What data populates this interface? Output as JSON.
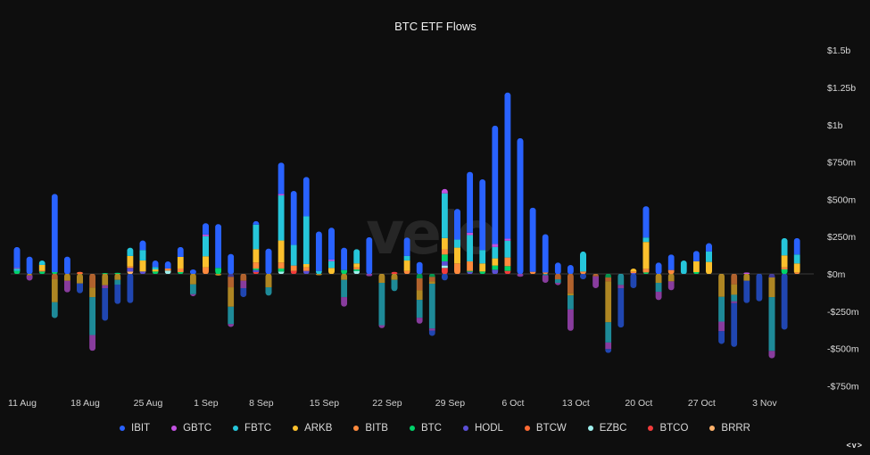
{
  "chart_data": {
    "type": "bar",
    "stacked": true,
    "title": "BTC ETF Flows",
    "watermark": "velo",
    "xlabel": "",
    "ylabel": "",
    "ylim": [
      -750,
      1500
    ],
    "y_unit": "USD millions",
    "y_ticks": [
      {
        "value": 1500,
        "label": "$1.5b"
      },
      {
        "value": 1250,
        "label": "$1.25b"
      },
      {
        "value": 1000,
        "label": "$1b"
      },
      {
        "value": 750,
        "label": "$750m"
      },
      {
        "value": 500,
        "label": "$500m"
      },
      {
        "value": 250,
        "label": "$250m"
      },
      {
        "value": 0,
        "label": "$0m"
      },
      {
        "value": -250,
        "label": "-$250m"
      },
      {
        "value": -500,
        "label": "-$500m"
      },
      {
        "value": -750,
        "label": "-$750m"
      }
    ],
    "x_ticks": [
      "11 Aug",
      "18 Aug",
      "25 Aug",
      "1 Sep",
      "8 Sep",
      "15 Sep",
      "22 Sep",
      "29 Sep",
      "6 Oct",
      "13 Oct",
      "20 Oct",
      "27 Oct",
      "3 Nov"
    ],
    "grid": false,
    "legend_position": "bottom",
    "categories": [
      "11 Aug",
      "12 Aug",
      "13 Aug",
      "14 Aug",
      "15 Aug",
      "18 Aug",
      "19 Aug",
      "20 Aug",
      "21 Aug",
      "22 Aug",
      "25 Aug",
      "26 Aug",
      "27 Aug",
      "28 Aug",
      "29 Aug",
      "2 Sep",
      "3 Sep",
      "4 Sep",
      "5 Sep",
      "8 Sep",
      "9 Sep",
      "10 Sep",
      "11 Sep",
      "12 Sep",
      "15 Sep",
      "16 Sep",
      "17 Sep",
      "18 Sep",
      "19 Sep",
      "22 Sep",
      "23 Sep",
      "24 Sep",
      "25 Sep",
      "26 Sep",
      "29 Sep",
      "30 Sep",
      "1 Oct",
      "2 Oct",
      "3 Oct",
      "6 Oct",
      "7 Oct",
      "8 Oct",
      "9 Oct",
      "10 Oct",
      "13 Oct",
      "14 Oct",
      "15 Oct",
      "16 Oct",
      "17 Oct",
      "20 Oct",
      "21 Oct",
      "22 Oct",
      "23 Oct",
      "24 Oct",
      "27 Oct",
      "28 Oct",
      "29 Oct",
      "30 Oct",
      "31 Oct",
      "3 Nov",
      "4 Nov",
      "5 Nov",
      "6 Nov"
    ],
    "series": [
      {
        "name": "IBIT",
        "color": "#2962ff",
        "values": [
          140,
          116,
          0,
          524,
          116,
          -66,
          0,
          -218,
          -130,
          -196,
          64,
          44,
          48,
          66,
          30,
          76,
          294,
          134,
          -60,
          24,
          170,
          210,
          362,
          264,
          264,
          214,
          150,
          0,
          246,
          0,
          0,
          124,
          80,
          -36,
          -44,
          206,
          408,
          474,
          794,
          980,
          910,
          430,
          256,
          76,
          60,
          -36,
          0,
          -26,
          -264,
          -96,
          210,
          76,
          104,
          0,
          70,
          56,
          -86,
          -294,
          -150,
          -184,
          0,
          -374,
          110
        ]
      },
      {
        "name": "GBTC",
        "color": "#c252e1",
        "values": [
          5,
          -35,
          0,
          0,
          -78,
          0,
          -106,
          -20,
          0,
          0,
          0,
          0,
          0,
          0,
          -14,
          12,
          0,
          -20,
          -50,
          0,
          0,
          10,
          0,
          0,
          0,
          10,
          -64,
          0,
          -16,
          -20,
          0,
          0,
          -40,
          -14,
          30,
          0,
          16,
          0,
          20,
          14,
          -20,
          0,
          -50,
          -16,
          -144,
          0,
          -80,
          -44,
          -22,
          0,
          0,
          -56,
          -60,
          0,
          0,
          0,
          -64,
          -12,
          10,
          0,
          -50,
          0,
          0
        ]
      },
      {
        "name": "FBTC",
        "color": "#26c6da",
        "values": [
          15,
          0,
          30,
          -106,
          0,
          0,
          -254,
          0,
          -32,
          56,
          70,
          16,
          0,
          0,
          -66,
          134,
          0,
          -116,
          0,
          164,
          -56,
          302,
          138,
          320,
          20,
          46,
          -116,
          96,
          0,
          -284,
          -76,
          30,
          -120,
          -300,
          300,
          54,
          176,
          90,
          76,
          112,
          0,
          0,
          -10,
          -24,
          -94,
          134,
          0,
          -136,
          -74,
          0,
          30,
          -60,
          0,
          90,
          0,
          70,
          -166,
          -44,
          0,
          0,
          -360,
          116,
          60
        ]
      },
      {
        "name": "ARKB",
        "color": "#fbc02d",
        "values": [
          0,
          -10,
          36,
          -154,
          -46,
          -64,
          -64,
          -76,
          -40,
          70,
          74,
          14,
          0,
          78,
          -70,
          74,
          -12,
          -130,
          0,
          90,
          -90,
          148,
          0,
          22,
          -10,
          40,
          -40,
          26,
          0,
          -60,
          -40,
          70,
          -64,
          -16,
          76,
          106,
          0,
          54,
          48,
          0,
          0,
          0,
          0,
          0,
          -14,
          0,
          0,
          -274,
          0,
          20,
          180,
          -60,
          -50,
          0,
          72,
          80,
          -154,
          -70,
          -46,
          0,
          -132,
          80,
          60
        ]
      },
      {
        "name": "BITB",
        "color": "#ff8a3d",
        "values": [
          0,
          0,
          8,
          -36,
          0,
          0,
          -92,
          0,
          0,
          10,
          0,
          0,
          14,
          24,
          0,
          44,
          0,
          -70,
          -46,
          40,
          0,
          40,
          36,
          24,
          0,
          0,
          0,
          14,
          0,
          0,
          0,
          20,
          -80,
          -30,
          34,
          70,
          64,
          0,
          0,
          58,
          0,
          14,
          10,
          -36,
          -130,
          16,
          -16,
          -26,
          0,
          10,
          24,
          0,
          26,
          0,
          0,
          0,
          0,
          -70,
          0,
          0,
          0,
          14,
          10
        ]
      },
      {
        "name": "BTC",
        "color": "#00d26a",
        "values": [
          20,
          0,
          16,
          12,
          0,
          0,
          0,
          6,
          8,
          0,
          0,
          16,
          0,
          12,
          0,
          0,
          40,
          0,
          0,
          10,
          0,
          20,
          0,
          0,
          0,
          0,
          26,
          10,
          0,
          0,
          0,
          0,
          -30,
          -20,
          46,
          0,
          6,
          16,
          28,
          32,
          0,
          0,
          0,
          0,
          0,
          0,
          0,
          -24,
          0,
          0,
          10,
          0,
          0,
          0,
          12,
          0,
          0,
          0,
          0,
          0,
          0,
          30,
          0
        ]
      },
      {
        "name": "HODL",
        "color": "#5b4fd6",
        "values": [
          0,
          0,
          0,
          0,
          0,
          0,
          0,
          0,
          0,
          24,
          16,
          0,
          0,
          0,
          0,
          0,
          0,
          -20,
          0,
          14,
          0,
          0,
          0,
          20,
          0,
          0,
          0,
          0,
          0,
          0,
          0,
          0,
          0,
          0,
          28,
          0,
          14,
          0,
          28,
          0,
          0,
          0,
          0,
          0,
          0,
          0,
          0,
          0,
          0,
          6,
          0,
          0,
          0,
          0,
          0,
          0,
          0,
          0,
          0,
          0,
          -24,
          0,
          0
        ]
      },
      {
        "name": "BTCW",
        "color": "#ff6a33",
        "values": [
          0,
          0,
          0,
          0,
          0,
          14,
          0,
          0,
          0,
          0,
          0,
          0,
          0,
          0,
          0,
          0,
          0,
          0,
          0,
          0,
          0,
          0,
          0,
          0,
          0,
          0,
          0,
          0,
          0,
          0,
          0,
          0,
          0,
          0,
          0,
          0,
          0,
          0,
          0,
          0,
          0,
          0,
          0,
          0,
          0,
          0,
          0,
          0,
          0,
          0,
          0,
          0,
          0,
          0,
          0,
          0,
          0,
          0,
          0,
          0,
          0,
          0,
          0
        ]
      },
      {
        "name": "EZBC",
        "color": "#9ff0ee",
        "values": [
          0,
          0,
          0,
          0,
          0,
          0,
          0,
          0,
          0,
          0,
          0,
          0,
          22,
          0,
          0,
          0,
          0,
          0,
          0,
          0,
          0,
          16,
          0,
          0,
          0,
          0,
          0,
          20,
          0,
          0,
          0,
          0,
          0,
          0,
          16,
          0,
          0,
          0,
          0,
          0,
          0,
          0,
          0,
          0,
          0,
          0,
          0,
          0,
          0,
          0,
          0,
          0,
          0,
          0,
          0,
          0,
          0,
          0,
          0,
          0,
          0,
          0,
          0
        ]
      },
      {
        "name": "BTCO",
        "color": "#f23b3b",
        "values": [
          0,
          0,
          0,
          0,
          0,
          0,
          0,
          0,
          0,
          0,
          0,
          0,
          0,
          0,
          0,
          0,
          0,
          0,
          0,
          12,
          0,
          0,
          20,
          0,
          0,
          0,
          0,
          0,
          0,
          0,
          14,
          0,
          0,
          0,
          40,
          0,
          0,
          0,
          0,
          20,
          0,
          0,
          0,
          0,
          0,
          0,
          0,
          0,
          0,
          0,
          0,
          0,
          0,
          0,
          0,
          0,
          0,
          0,
          0,
          0,
          0,
          0,
          0
        ]
      },
      {
        "name": "BRRR",
        "color": "#ffb26b",
        "values": [
          0,
          0,
          0,
          0,
          0,
          0,
          0,
          0,
          0,
          16,
          0,
          0,
          0,
          0,
          0,
          0,
          0,
          0,
          0,
          0,
          0,
          0,
          0,
          0,
          0,
          0,
          0,
          0,
          0,
          0,
          0,
          0,
          0,
          0,
          0,
          0,
          0,
          0,
          0,
          0,
          0,
          0,
          0,
          0,
          0,
          0,
          0,
          0,
          0,
          0,
          0,
          0,
          0,
          0,
          0,
          0,
          0,
          0,
          0,
          0,
          0,
          0,
          0
        ]
      }
    ]
  },
  "nav": {
    "arrows": "<v>"
  }
}
